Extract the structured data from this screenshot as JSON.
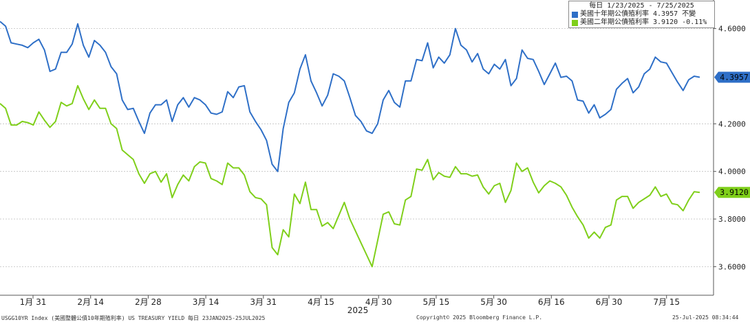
{
  "chart_data": {
    "type": "line",
    "yticks": [
      "4.6000",
      "4.2000",
      "4.0000",
      "3.8000",
      "3.6000"
    ],
    "xticks": [
      "1月 31",
      "2月 14",
      "2月 28",
      "3月 14",
      "3月 31",
      "4月 15",
      "4月 30",
      "5月 15",
      "5月 30",
      "6月 16",
      "6月 30",
      "7月 15"
    ],
    "year_label": "2025",
    "ylim": [
      3.48,
      4.72
    ],
    "grid": true,
    "legend_position": "top-right",
    "legend": {
      "title": "每日 1/23/2025 - 7/25/2025",
      "entries": [
        {
          "label": "美國十年期公債殖利率 4.3957  不變",
          "color": "#2e6fc7"
        },
        {
          "label": "美國二年期公債殖利率 3.9120  -0.11%",
          "color": "#7fcf1a"
        }
      ]
    },
    "series": [
      {
        "name": "美國十年期公債殖利率",
        "color": "#2e6fc7",
        "last_label": "4.3957",
        "values": [
          4.63,
          4.61,
          4.54,
          4.535,
          4.53,
          4.52,
          4.54,
          4.555,
          4.51,
          4.42,
          4.43,
          4.5,
          4.5,
          4.535,
          4.62,
          4.53,
          4.48,
          4.55,
          4.53,
          4.5,
          4.44,
          4.41,
          4.3,
          4.26,
          4.265,
          4.21,
          4.16,
          4.245,
          4.28,
          4.28,
          4.3,
          4.21,
          4.28,
          4.31,
          4.27,
          4.31,
          4.3,
          4.28,
          4.245,
          4.24,
          4.25,
          4.335,
          4.31,
          4.355,
          4.36,
          4.25,
          4.21,
          4.175,
          4.13,
          4.03,
          4.0,
          4.18,
          4.29,
          4.33,
          4.43,
          4.49,
          4.38,
          4.33,
          4.275,
          4.32,
          4.41,
          4.4,
          4.38,
          4.31,
          4.235,
          4.21,
          4.17,
          4.16,
          4.2,
          4.3,
          4.34,
          4.29,
          4.27,
          4.38,
          4.38,
          4.47,
          4.465,
          4.54,
          4.435,
          4.48,
          4.455,
          4.49,
          4.6,
          4.53,
          4.51,
          4.46,
          4.495,
          4.43,
          4.41,
          4.45,
          4.43,
          4.47,
          4.36,
          4.39,
          4.51,
          4.475,
          4.47,
          4.42,
          4.365,
          4.41,
          4.455,
          4.395,
          4.4,
          4.38,
          4.3,
          4.295,
          4.245,
          4.28,
          4.225,
          4.24,
          4.26,
          4.345,
          4.37,
          4.39,
          4.33,
          4.355,
          4.41,
          4.43,
          4.48,
          4.46,
          4.455,
          4.415,
          4.375,
          4.34,
          4.385,
          4.4,
          4.3957
        ]
      },
      {
        "name": "美國二年期公債殖利率",
        "color": "#7fcf1a",
        "last_label": "3.9120",
        "values": [
          4.285,
          4.265,
          4.195,
          4.195,
          4.21,
          4.205,
          4.195,
          4.25,
          4.215,
          4.185,
          4.21,
          4.29,
          4.275,
          4.285,
          4.36,
          4.305,
          4.26,
          4.3,
          4.265,
          4.265,
          4.2,
          4.18,
          4.09,
          4.07,
          4.05,
          3.99,
          3.95,
          3.99,
          4.0,
          3.955,
          3.99,
          3.89,
          3.945,
          3.985,
          3.96,
          4.02,
          4.04,
          4.035,
          3.97,
          3.96,
          3.945,
          4.035,
          4.015,
          4.015,
          3.985,
          3.915,
          3.89,
          3.885,
          3.86,
          3.68,
          3.65,
          3.755,
          3.725,
          3.905,
          3.865,
          3.955,
          3.84,
          3.84,
          3.77,
          3.785,
          3.76,
          3.815,
          3.87,
          3.8,
          3.75,
          3.7,
          3.65,
          3.6,
          3.71,
          3.82,
          3.83,
          3.78,
          3.775,
          3.88,
          3.895,
          4.01,
          4.005,
          4.05,
          3.965,
          3.995,
          3.98,
          3.975,
          4.02,
          3.99,
          3.99,
          3.98,
          3.985,
          3.935,
          3.905,
          3.94,
          3.95,
          3.87,
          3.92,
          4.035,
          4.0,
          4.015,
          3.955,
          3.91,
          3.94,
          3.96,
          3.95,
          3.935,
          3.9,
          3.85,
          3.81,
          3.775,
          3.72,
          3.745,
          3.72,
          3.765,
          3.775,
          3.88,
          3.895,
          3.895,
          3.845,
          3.87,
          3.885,
          3.9,
          3.935,
          3.895,
          3.905,
          3.865,
          3.86,
          3.835,
          3.88,
          3.915,
          3.912
        ]
      }
    ]
  },
  "footer": {
    "left": "USGG10YR Index (美國整體公債10年期殖利率) US TREASURY YIELD  每日 23JAN2025-25JUL2025",
    "center": "Copyright© 2025 Bloomberg Finance L.P.",
    "right": "25-Jul-2025 08:34:44"
  }
}
